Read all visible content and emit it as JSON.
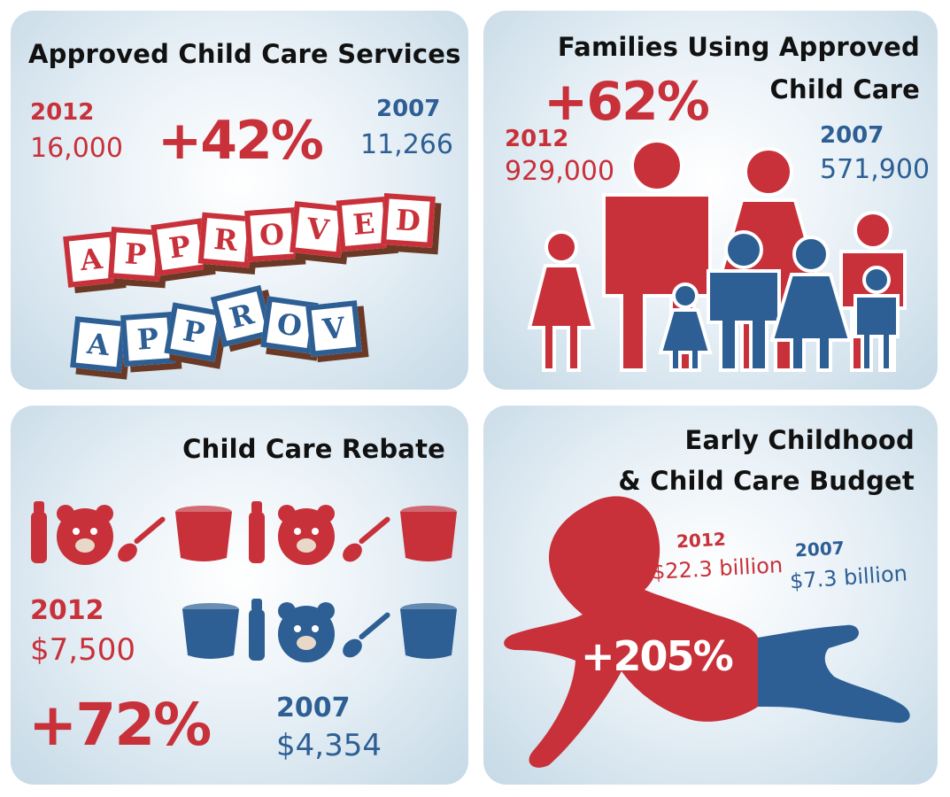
{
  "colors": {
    "red": "#c8313a",
    "blue": "#2d5f94",
    "brown": "#6b3a26"
  },
  "chart_data": [
    {
      "type": "table",
      "title": "Approved Child Care Services",
      "series": [
        {
          "name": "2012",
          "value": "16,000"
        },
        {
          "name": "2007",
          "value": "11,266"
        }
      ],
      "change": "+42%",
      "block_letters": {
        "red_row": [
          "A",
          "P",
          "P",
          "R",
          "O",
          "V",
          "E",
          "D"
        ],
        "blue_row": [
          "A",
          "P",
          "P",
          "R",
          "O",
          "V"
        ]
      }
    },
    {
      "type": "table",
      "title_lines": [
        "Families Using Approved",
        "Child Care"
      ],
      "series": [
        {
          "name": "2012",
          "value": "929,000"
        },
        {
          "name": "2007",
          "value": "571,900"
        }
      ],
      "change": "+62%"
    },
    {
      "type": "table",
      "title": "Child Care Rebate",
      "series": [
        {
          "name": "2012",
          "value": "$7,500"
        },
        {
          "name": "2007",
          "value": "$4,354"
        }
      ],
      "change": "+72%"
    },
    {
      "type": "table",
      "title_lines": [
        "Early Childhood",
        "& Child Care Budget"
      ],
      "series": [
        {
          "name": "2012",
          "value": "$22.3 billion"
        },
        {
          "name": "2007",
          "value": "$7.3 billion"
        }
      ],
      "change": "+205%"
    }
  ]
}
